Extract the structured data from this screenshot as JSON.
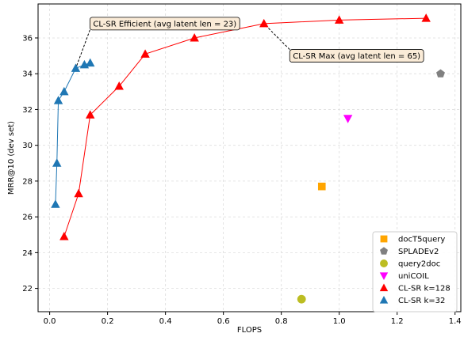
{
  "chart_data": {
    "type": "scatter",
    "xlabel": "FLOPS",
    "ylabel": "MRR@10 (dev set)",
    "xlim": [
      -0.04,
      1.42
    ],
    "ylim": [
      20.7,
      37.9
    ],
    "xticks": [
      0.0,
      0.2,
      0.4,
      0.6,
      0.8,
      1.0,
      1.2,
      1.4
    ],
    "yticks": [
      22,
      24,
      26,
      28,
      30,
      32,
      34,
      36
    ],
    "grid": true,
    "legend_position": "bottom-right",
    "series": [
      {
        "name": "docT5query",
        "marker": "square",
        "color": "#ffa500",
        "line": false,
        "points": [
          [
            0.94,
            27.7
          ]
        ]
      },
      {
        "name": "SPLADEv2",
        "marker": "pentagon",
        "color": "#808080",
        "line": false,
        "points": [
          [
            1.35,
            34.0
          ]
        ]
      },
      {
        "name": "query2doc",
        "marker": "circle",
        "color": "#bcbd22",
        "line": false,
        "points": [
          [
            0.87,
            21.4
          ]
        ]
      },
      {
        "name": "uniCOIL",
        "marker": "triangle-down",
        "color": "#ff00ff",
        "line": false,
        "points": [
          [
            1.03,
            31.5
          ]
        ]
      },
      {
        "name": "CL-SR k=128",
        "marker": "triangle-up",
        "color": "#ff0000",
        "line": true,
        "points": [
          [
            0.05,
            24.9
          ],
          [
            0.1,
            27.3
          ],
          [
            0.14,
            31.7
          ],
          [
            0.24,
            33.3
          ],
          [
            0.33,
            35.1
          ],
          [
            0.5,
            36.0
          ],
          [
            0.74,
            36.8
          ],
          [
            1.0,
            37.0
          ],
          [
            1.3,
            37.1
          ]
        ]
      },
      {
        "name": "CL-SR k=32",
        "marker": "triangle-up",
        "color": "#1f77b4",
        "line": true,
        "points": [
          [
            0.02,
            26.7
          ],
          [
            0.025,
            29.0
          ],
          [
            0.03,
            32.5
          ],
          [
            0.05,
            33.0
          ],
          [
            0.09,
            34.3
          ],
          [
            0.12,
            34.5
          ],
          [
            0.14,
            34.6
          ]
        ]
      }
    ],
    "annotations": [
      {
        "text": "CL-SR Efficient (avg latent len = 23)",
        "xy": [
          0.09,
          34.3
        ],
        "text_at": [
          0.15,
          36.8
        ]
      },
      {
        "text": "CL-SR Max (avg latent len = 65)",
        "xy": [
          0.74,
          36.8
        ],
        "text_at": [
          0.84,
          35.0
        ]
      }
    ]
  }
}
